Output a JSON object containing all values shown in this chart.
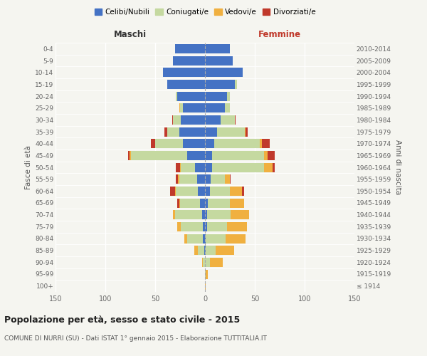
{
  "age_groups": [
    "100+",
    "95-99",
    "90-94",
    "85-89",
    "80-84",
    "75-79",
    "70-74",
    "65-69",
    "60-64",
    "55-59",
    "50-54",
    "45-49",
    "40-44",
    "35-39",
    "30-34",
    "25-29",
    "20-24",
    "15-19",
    "10-14",
    "5-9",
    "0-4"
  ],
  "birth_years": [
    "≤ 1914",
    "1915-1919",
    "1920-1924",
    "1925-1929",
    "1930-1934",
    "1935-1939",
    "1940-1944",
    "1945-1949",
    "1950-1954",
    "1955-1959",
    "1960-1964",
    "1965-1969",
    "1970-1974",
    "1975-1979",
    "1980-1984",
    "1985-1989",
    "1990-1994",
    "1995-1999",
    "2000-2004",
    "2005-2009",
    "2010-2014"
  ],
  "male": {
    "celibe": [
      0,
      0,
      0,
      1,
      2,
      2,
      3,
      5,
      7,
      8,
      10,
      18,
      22,
      26,
      24,
      22,
      28,
      38,
      42,
      32,
      30
    ],
    "coniugato": [
      0,
      0,
      2,
      6,
      16,
      22,
      27,
      20,
      22,
      18,
      14,
      56,
      28,
      12,
      8,
      3,
      1,
      0,
      0,
      0,
      0
    ],
    "vedovo": [
      0,
      0,
      1,
      4,
      3,
      4,
      2,
      1,
      1,
      1,
      1,
      2,
      0,
      0,
      0,
      1,
      0,
      0,
      0,
      0,
      0
    ],
    "divorziato": [
      0,
      0,
      0,
      0,
      0,
      0,
      0,
      2,
      5,
      2,
      4,
      1,
      4,
      3,
      1,
      0,
      0,
      0,
      0,
      0,
      0
    ]
  },
  "female": {
    "nubile": [
      0,
      0,
      0,
      1,
      1,
      2,
      2,
      3,
      5,
      6,
      7,
      7,
      9,
      12,
      16,
      20,
      22,
      30,
      38,
      28,
      25
    ],
    "coniugata": [
      0,
      1,
      5,
      10,
      20,
      20,
      24,
      22,
      20,
      14,
      52,
      52,
      46,
      28,
      14,
      5,
      3,
      2,
      0,
      0,
      0
    ],
    "vedova": [
      1,
      2,
      13,
      18,
      20,
      20,
      18,
      14,
      12,
      5,
      9,
      4,
      2,
      1,
      0,
      0,
      0,
      0,
      0,
      0,
      0
    ],
    "divorziata": [
      0,
      0,
      0,
      0,
      0,
      0,
      0,
      0,
      2,
      1,
      2,
      7,
      8,
      2,
      1,
      0,
      0,
      0,
      0,
      0,
      0
    ]
  },
  "colors": {
    "celibe": "#4472c4",
    "coniugato": "#c5d9a0",
    "vedovo": "#f0b040",
    "divorziato": "#c0392b"
  },
  "xlim": 150,
  "title": "Popolazione per età, sesso e stato civile - 2015",
  "subtitle": "COMUNE DI NURRI (SU) - Dati ISTAT 1° gennaio 2015 - Elaborazione TUTTITALIA.IT",
  "xlabel_left": "Maschi",
  "xlabel_right": "Femmine",
  "ylabel_left": "Fasce di età",
  "ylabel_right": "Anni di nascita",
  "background_color": "#f5f5f0",
  "legend_labels": [
    "Celibi/Nubili",
    "Coniugati/e",
    "Vedovi/e",
    "Divorziati/e"
  ]
}
